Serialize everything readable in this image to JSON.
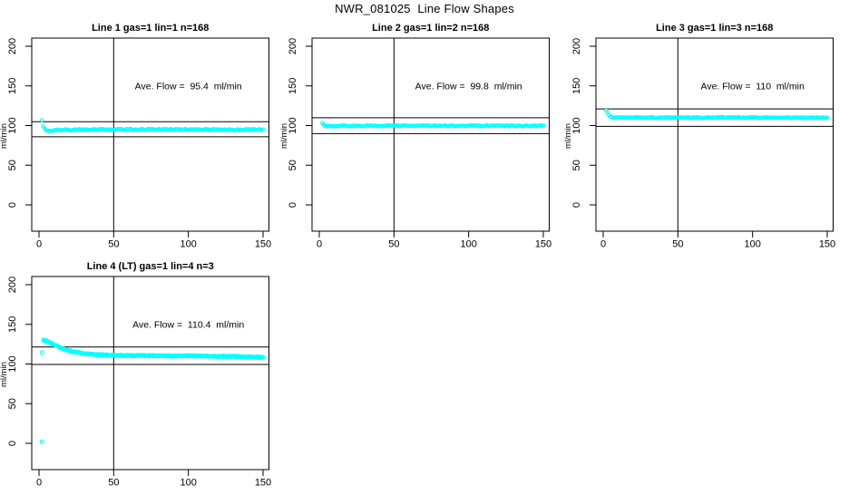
{
  "main_title": "NWR_081025  Line Flow Shapes",
  "style": {
    "point_color": "#00FFFF",
    "axis_color": "#000000",
    "background": "#ffffff"
  },
  "chart_data": [
    {
      "id": "panel-line-1",
      "type": "scatter",
      "title": "Line 1 gas=1 lin=1 n=168",
      "annotation": {
        "text": "Ave. Flow =  95.4  ml/min",
        "x": 100,
        "y": 150
      },
      "avg_flow_ml_min": 95.4,
      "n": 168,
      "xlabel": "",
      "ylabel": "ml/min",
      "x_ticks": [
        0,
        50,
        100,
        150
      ],
      "y_ticks": [
        0,
        50,
        100,
        150,
        200
      ],
      "grid": false,
      "legend": "none",
      "reference_lines": {
        "horizontal": [
          104.9,
          85.9
        ],
        "vertical": [
          50
        ]
      },
      "series": [
        {
          "name": "line1-flow",
          "marker": "open-circle",
          "x_range": [
            2,
            150
          ],
          "n_points": 168,
          "jitter": 0.9,
          "runs": 1,
          "profile": [
            [
              2,
              106.5
            ],
            [
              3,
              98.5
            ],
            [
              4,
              95.5
            ],
            [
              5,
              94.2
            ],
            [
              7,
              93.6
            ],
            [
              10,
              94.2
            ],
            [
              15,
              94.6
            ],
            [
              30,
              94.9
            ],
            [
              60,
              95.1
            ],
            [
              100,
              95.0
            ],
            [
              150,
              94.8
            ]
          ]
        }
      ],
      "outlier_points": []
    },
    {
      "id": "panel-line-2",
      "type": "scatter",
      "title": "Line 2 gas=1 lin=2 n=168",
      "annotation": {
        "text": "Ave. Flow =  99.8  ml/min",
        "x": 100,
        "y": 150
      },
      "avg_flow_ml_min": 99.8,
      "n": 168,
      "xlabel": "",
      "ylabel": "ml/min",
      "x_ticks": [
        0,
        50,
        100,
        150
      ],
      "y_ticks": [
        0,
        50,
        100,
        150,
        200
      ],
      "grid": false,
      "legend": "none",
      "reference_lines": {
        "horizontal": [
          109.8,
          89.8
        ],
        "vertical": [
          50
        ]
      },
      "series": [
        {
          "name": "line2-flow",
          "marker": "open-circle",
          "x_range": [
            2,
            150
          ],
          "n_points": 168,
          "jitter": 0.7,
          "runs": 1,
          "profile": [
            [
              2,
              102.5
            ],
            [
              3,
              100.3
            ],
            [
              4,
              99.6
            ],
            [
              6,
              99.3
            ],
            [
              10,
              99.5
            ],
            [
              30,
              99.7
            ],
            [
              60,
              99.8
            ],
            [
              100,
              99.7
            ],
            [
              150,
              99.6
            ]
          ]
        }
      ],
      "outlier_points": []
    },
    {
      "id": "panel-line-3",
      "type": "scatter",
      "title": "Line 3 gas=1 lin=3 n=168",
      "annotation": {
        "text": "Ave. Flow =  110  ml/min",
        "x": 100,
        "y": 150
      },
      "avg_flow_ml_min": 110,
      "n": 168,
      "xlabel": "",
      "ylabel": "ml/min",
      "x_ticks": [
        0,
        50,
        100,
        150
      ],
      "y_ticks": [
        0,
        50,
        100,
        150,
        200
      ],
      "grid": false,
      "legend": "none",
      "reference_lines": {
        "horizontal": [
          121,
          99
        ],
        "vertical": [
          50
        ]
      },
      "series": [
        {
          "name": "line3-flow",
          "marker": "open-circle",
          "x_range": [
            2,
            150
          ],
          "n_points": 168,
          "jitter": 0.7,
          "runs": 1,
          "profile": [
            [
              2,
              118.8
            ],
            [
              3,
              115.5
            ],
            [
              4,
              112.5
            ],
            [
              5,
              111.2
            ],
            [
              7,
              110.4
            ],
            [
              10,
              110.1
            ],
            [
              30,
              110.0
            ],
            [
              60,
              110.1
            ],
            [
              100,
              110.0
            ],
            [
              150,
              109.9
            ]
          ]
        }
      ],
      "outlier_points": []
    },
    {
      "id": "panel-line-4",
      "type": "scatter",
      "title": "Line 4 (LT) gas=1 lin=4 n=3",
      "annotation": {
        "text": "Ave. Flow =  110.4  ml/min",
        "x": 100,
        "y": 150
      },
      "avg_flow_ml_min": 110.4,
      "n": 3,
      "xlabel": "",
      "ylabel": "ml/min",
      "x_ticks": [
        0,
        50,
        100,
        150
      ],
      "y_ticks": [
        0,
        50,
        100,
        150,
        200
      ],
      "grid": false,
      "legend": "none",
      "reference_lines": {
        "horizontal": [
          121.4,
          99.4
        ],
        "vertical": [
          50
        ]
      },
      "series": [
        {
          "name": "line4-flow",
          "marker": "open-circle",
          "x_range": [
            3,
            150
          ],
          "n_points": 160,
          "jitter": 0.8,
          "runs": 3,
          "profile": [
            [
              3,
              130
            ],
            [
              5,
              129
            ],
            [
              8,
              126.5
            ],
            [
              12,
              122.5
            ],
            [
              16,
              119.2
            ],
            [
              20,
              116.8
            ],
            [
              25,
              114.8
            ],
            [
              30,
              113.3
            ],
            [
              35,
              112.4
            ],
            [
              40,
              111.8
            ],
            [
              50,
              111.0
            ],
            [
              60,
              110.6
            ],
            [
              70,
              110.8
            ],
            [
              80,
              110.4
            ],
            [
              90,
              110.2
            ],
            [
              100,
              110.4
            ],
            [
              110,
              110.0
            ],
            [
              120,
              109.6
            ],
            [
              130,
              109.6
            ],
            [
              140,
              109.0
            ],
            [
              150,
              108.4
            ]
          ]
        }
      ],
      "outlier_points": [
        [
          2,
          114.5
        ],
        [
          2,
          2
        ]
      ]
    }
  ]
}
